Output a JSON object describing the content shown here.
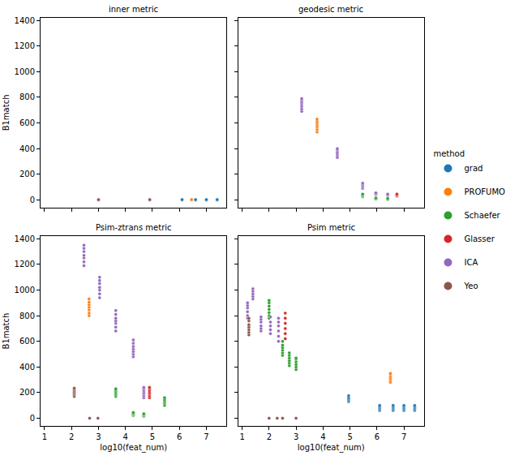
{
  "chart_data": [
    {
      "type": "scatter",
      "title": "inner metric",
      "y_label": "B1match",
      "xlim": [
        0.85,
        7.75
      ],
      "xticks": [
        1,
        2,
        3,
        4,
        5,
        6,
        7
      ],
      "ylim": [
        -60,
        1420
      ],
      "yticks": [
        0,
        200,
        400,
        600,
        800,
        1000,
        1200,
        1400
      ],
      "grid": false,
      "tick_labels": "y",
      "marker": "o",
      "series": [
        {
          "name": "grad",
          "color": "#1f77b4",
          "x": [
            6.1,
            6.1,
            6.6,
            6.6,
            7.0,
            7.0,
            7.4,
            7.4
          ],
          "values": [
            0,
            2,
            0,
            2,
            0,
            2,
            0,
            2
          ]
        },
        {
          "name": "PROFUMO",
          "color": "#ff7f0e",
          "x": [
            6.45,
            6.45
          ],
          "values": [
            0,
            3
          ]
        },
        {
          "name": "Yeo",
          "color": "#8c564b",
          "x": [
            3.0,
            3.0,
            4.9,
            4.9
          ],
          "values": [
            0,
            2,
            0,
            2
          ]
        }
      ]
    },
    {
      "type": "scatter",
      "title": "geodesic metric",
      "xlim": [
        0.85,
        7.75
      ],
      "xticks": [
        1,
        2,
        3,
        4,
        5,
        6,
        7
      ],
      "ylim": [
        -60,
        1420
      ],
      "yticks": [
        0,
        200,
        400,
        600,
        800,
        1000,
        1200,
        1400
      ],
      "grid": false,
      "tick_labels": false,
      "marker": "o",
      "series": [
        {
          "name": "PROFUMO",
          "color": "#ff7f0e",
          "x": [
            3.78,
            3.78,
            3.78,
            3.78,
            3.78,
            3.78,
            3.78
          ],
          "values": [
            530,
            550,
            570,
            585,
            600,
            615,
            630
          ]
        },
        {
          "name": "Schaefer",
          "color": "#2ca02c",
          "x": [
            5.47,
            5.47,
            5.47,
            5.47,
            5.47,
            5.96,
            5.96,
            5.96,
            5.96,
            6.4,
            6.4,
            6.4,
            6.4
          ],
          "values": [
            25,
            30,
            35,
            40,
            45,
            5,
            8,
            12,
            15,
            3,
            6,
            9,
            12
          ]
        },
        {
          "name": "Glasser",
          "color": "#d62728",
          "x": [
            6.74,
            6.74,
            6.74,
            6.74
          ],
          "values": [
            30,
            35,
            40,
            45
          ]
        },
        {
          "name": "ICA",
          "color": "#9467bd",
          "x": [
            3.21,
            3.21,
            3.21,
            3.21,
            3.21,
            3.21,
            3.21,
            4.53,
            4.53,
            4.53,
            4.53,
            4.53,
            4.53,
            5.47,
            5.47,
            5.47,
            5.47,
            5.47,
            5.96,
            5.96,
            5.96,
            5.96,
            6.4,
            6.4,
            6.4
          ],
          "values": [
            690,
            710,
            730,
            750,
            765,
            780,
            790,
            330,
            345,
            360,
            375,
            390,
            400,
            90,
            100,
            110,
            120,
            130,
            40,
            45,
            50,
            55,
            35,
            40,
            45
          ]
        }
      ]
    },
    {
      "type": "scatter",
      "title": "Psim-ztrans metric",
      "x_label": "log10(feat_num)",
      "y_label": "B1match",
      "xlim": [
        0.85,
        7.75
      ],
      "xticks": [
        1,
        2,
        3,
        4,
        5,
        6,
        7
      ],
      "ylim": [
        -60,
        1420
      ],
      "yticks": [
        0,
        200,
        400,
        600,
        800,
        1000,
        1200,
        1400
      ],
      "grid": false,
      "tick_labels": true,
      "marker": "o",
      "series": [
        {
          "name": "PROFUMO",
          "color": "#ff7f0e",
          "x": [
            2.65,
            2.65,
            2.65,
            2.65,
            2.65,
            2.65,
            2.65
          ],
          "values": [
            800,
            820,
            845,
            865,
            885,
            905,
            930
          ]
        },
        {
          "name": "Schaefer",
          "color": "#2ca02c",
          "x": [
            3.64,
            3.64,
            3.64,
            3.64,
            3.64,
            3.64,
            3.64,
            4.29,
            4.29,
            4.29,
            4.29,
            4.29,
            4.29,
            4.68,
            4.68,
            4.68,
            4.68,
            4.68,
            5.45,
            5.45,
            5.45,
            5.45,
            5.45,
            5.45
          ],
          "values": [
            170,
            180,
            190,
            200,
            210,
            220,
            230,
            20,
            25,
            30,
            35,
            40,
            45,
            15,
            20,
            25,
            30,
            35,
            100,
            115,
            125,
            135,
            145,
            160
          ]
        },
        {
          "name": "Glasser",
          "color": "#d62728",
          "x": [
            4.89,
            4.89,
            4.89,
            4.89,
            4.89,
            4.89,
            4.89
          ],
          "values": [
            160,
            175,
            190,
            200,
            215,
            230,
            240
          ]
        },
        {
          "name": "ICA",
          "color": "#9467bd",
          "x": [
            2.46,
            2.46,
            2.46,
            2.46,
            2.46,
            2.46,
            2.46,
            3.04,
            3.04,
            3.04,
            3.04,
            3.04,
            3.04,
            3.04,
            3.64,
            3.64,
            3.64,
            3.64,
            3.64,
            3.64,
            3.64,
            4.29,
            4.29,
            4.29,
            4.29,
            4.29,
            4.29,
            4.29,
            4.68,
            4.68,
            4.68,
            4.68,
            4.68,
            4.68,
            4.68
          ],
          "values": [
            1190,
            1220,
            1250,
            1270,
            1300,
            1325,
            1350,
            940,
            970,
            1000,
            1020,
            1050,
            1075,
            1100,
            680,
            710,
            740,
            760,
            780,
            810,
            840,
            480,
            500,
            520,
            540,
            560,
            585,
            610,
            160,
            175,
            190,
            200,
            215,
            230,
            240
          ]
        },
        {
          "name": "Yeo",
          "color": "#8c564b",
          "x": [
            2.1,
            2.1,
            2.1,
            2.1,
            2.1,
            2.1,
            2.1,
            2.67,
            2.98
          ],
          "values": [
            170,
            185,
            195,
            205,
            215,
            225,
            235,
            0,
            0
          ]
        }
      ]
    },
    {
      "type": "scatter",
      "title": "Psim metric",
      "x_label": "log10(feat_num)",
      "xlim": [
        0.85,
        7.75
      ],
      "xticks": [
        1,
        2,
        3,
        4,
        5,
        6,
        7
      ],
      "ylim": [
        -60,
        1420
      ],
      "yticks": [
        0,
        200,
        400,
        600,
        800,
        1000,
        1200,
        1400
      ],
      "grid": false,
      "tick_labels": "x",
      "marker": "o",
      "legend": "right",
      "legend_title": "method",
      "series": [
        {
          "name": "grad",
          "color": "#1f77b4",
          "x": [
            4.95,
            4.95,
            4.95,
            4.95,
            4.95,
            6.1,
            6.1,
            6.1,
            6.1,
            6.1,
            6.6,
            6.6,
            6.6,
            6.6,
            6.6,
            7.0,
            7.0,
            7.0,
            7.0,
            7.0,
            7.4,
            7.4,
            7.4,
            7.4,
            7.4
          ],
          "values": [
            130,
            140,
            150,
            160,
            175,
            60,
            70,
            80,
            90,
            100,
            60,
            70,
            80,
            90,
            100,
            60,
            70,
            80,
            90,
            100,
            60,
            70,
            80,
            90,
            100
          ]
        },
        {
          "name": "PROFUMO",
          "color": "#ff7f0e",
          "x": [
            6.5,
            6.5,
            6.5,
            6.5,
            6.5,
            6.5
          ],
          "values": [
            280,
            295,
            310,
            325,
            340,
            350
          ]
        },
        {
          "name": "Schaefer",
          "color": "#2ca02c",
          "x": [
            2.0,
            2.0,
            2.0,
            2.0,
            2.0,
            2.0,
            2.0,
            2.5,
            2.5,
            2.5,
            2.5,
            2.5,
            2.5,
            2.75,
            2.75,
            2.75,
            2.75,
            2.75,
            2.75,
            3.0,
            3.0,
            3.0,
            3.0,
            3.0,
            3.0
          ],
          "values": [
            780,
            800,
            825,
            850,
            875,
            900,
            920,
            490,
            510,
            530,
            550,
            570,
            600,
            410,
            430,
            450,
            470,
            490,
            510,
            380,
            400,
            420,
            440,
            460,
            470
          ]
        },
        {
          "name": "Glasser",
          "color": "#d62728",
          "x": [
            2.6,
            2.6,
            2.6,
            2.6,
            2.6,
            2.6
          ],
          "values": [
            620,
            660,
            700,
            740,
            780,
            820
          ]
        },
        {
          "name": "ICA",
          "color": "#9467bd",
          "x": [
            1.2,
            1.2,
            1.2,
            1.2,
            1.2,
            1.2,
            1.4,
            1.4,
            1.4,
            1.4,
            1.4,
            1.7,
            1.7,
            1.7,
            1.7,
            1.7,
            1.7,
            2.05,
            2.05,
            2.05,
            2.05,
            2.05,
            2.35,
            2.35,
            2.35,
            2.35,
            2.35,
            2.35
          ],
          "values": [
            780,
            800,
            830,
            860,
            880,
            900,
            930,
            950,
            970,
            990,
            1010,
            680,
            700,
            720,
            750,
            770,
            790,
            660,
            690,
            720,
            750,
            790,
            600,
            640,
            680,
            720,
            750,
            780
          ]
        },
        {
          "name": "Yeo",
          "color": "#8c564b",
          "x": [
            1.25,
            1.25,
            1.25,
            1.25,
            1.25,
            1.25,
            1.25,
            2.0,
            2.3,
            2.5,
            3.0
          ],
          "values": [
            650,
            670,
            690,
            710,
            730,
            760,
            780,
            0,
            0,
            0,
            0
          ]
        }
      ]
    }
  ]
}
